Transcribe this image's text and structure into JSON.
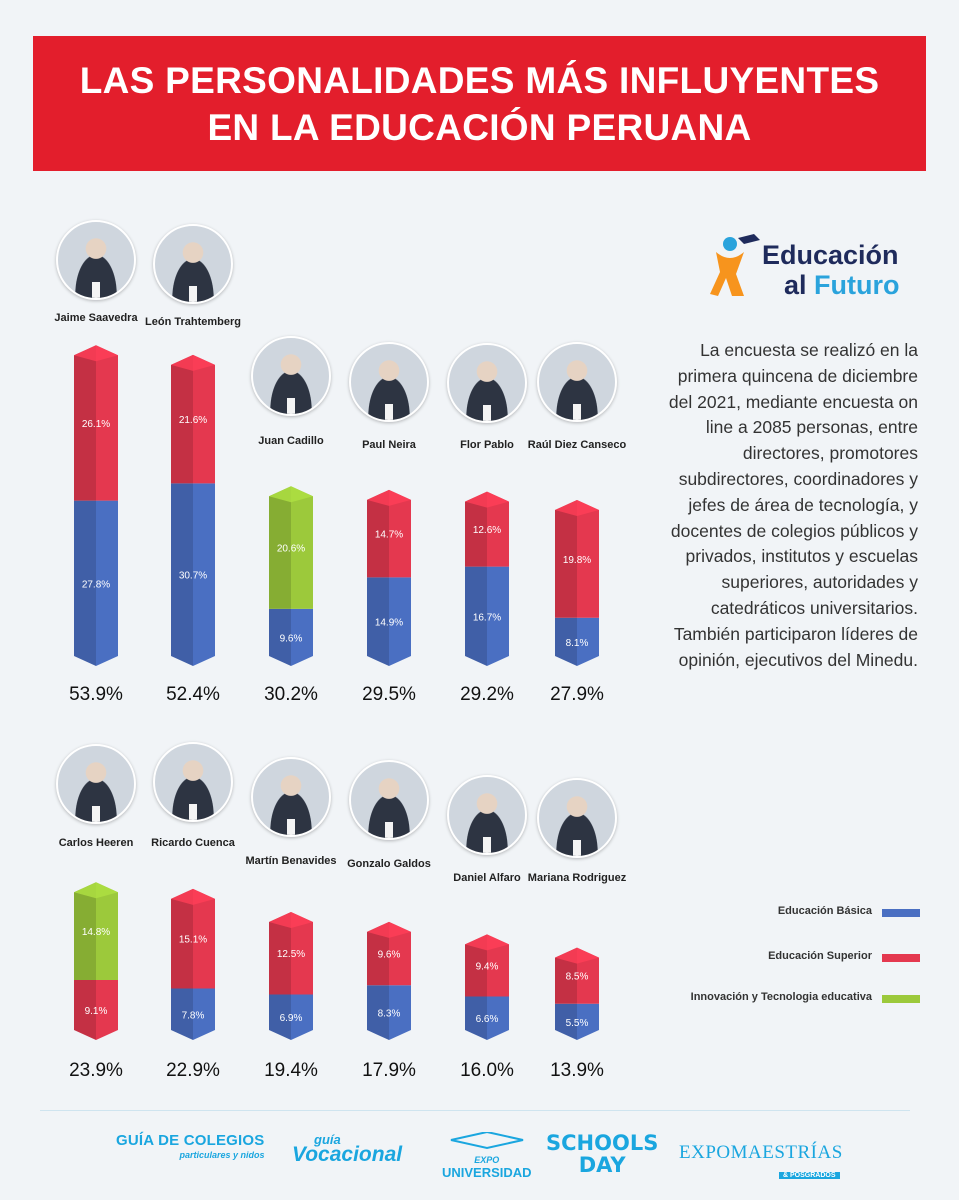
{
  "title": {
    "line1": "LAS PERSONALIDADES MÁS INFLUYENTES",
    "line2": "EN LA EDUCACIÓN PERUANA"
  },
  "logo": {
    "line1": "Educación",
    "line2_a": "al ",
    "line2_b": "Futuro"
  },
  "description": "La encuesta se realizó en la primera quincena de diciembre del 2021, mediante encuesta on line a 2085 personas, entre directores, promotores subdirectores, coordinadores y jefes de área de tecnología, y docentes de colegios públicos y privados, institutos y escuelas superiores, autoridades y catedráticos universitarios. También participaron líderes de opinión, ejecutivos del Minedu.",
  "legend": {
    "basica": "Educación Básica",
    "superior": "Educación Superior",
    "innovacion": "Innovación y Tecnologia educativa"
  },
  "colors": {
    "basica": "#4a6fc2",
    "superior": "#e4384f",
    "innovacion": "#9cc93b",
    "title_bg": "#e31e2c",
    "footer": "#1aa6df"
  },
  "chart_data": {
    "type": "bar",
    "stacked": true,
    "series": [
      {
        "name": "Educación Básica"
      },
      {
        "name": "Educación Superior"
      },
      {
        "name": "Innovación y Tecnologia educativa"
      }
    ],
    "rows": [
      [
        {
          "name": "Jaime Saavedra",
          "basica": 27.8,
          "superior": 26.1,
          "innovacion": 0,
          "total": "53.9%"
        },
        {
          "name": "León Trahtemberg",
          "basica": 30.7,
          "superior": 21.6,
          "innovacion": 0,
          "total": "52.4%"
        },
        {
          "name": "Juan Cadillo",
          "basica": 9.6,
          "superior": 0,
          "innovacion": 20.6,
          "total": "30.2%"
        },
        {
          "name": "Paul Neira",
          "basica": 14.9,
          "superior": 14.7,
          "innovacion": 0,
          "total": "29.5%"
        },
        {
          "name": "Flor Pablo",
          "basica": 16.7,
          "superior": 12.6,
          "innovacion": 0,
          "total": "29.2%"
        },
        {
          "name": "Raúl Diez Canseco",
          "basica": 8.1,
          "superior": 19.8,
          "innovacion": 0,
          "total": "27.9%"
        }
      ],
      [
        {
          "name": "Carlos Heeren",
          "basica": 0,
          "superior": 9.1,
          "innovacion": 14.8,
          "total": "23.9%"
        },
        {
          "name": "Ricardo Cuenca",
          "basica": 7.8,
          "superior": 15.1,
          "innovacion": 0,
          "total": "22.9%"
        },
        {
          "name": "Martín Benavides",
          "basica": 6.9,
          "superior": 12.5,
          "innovacion": 0,
          "total": "19.4%"
        },
        {
          "name": "Gonzalo Galdos",
          "basica": 8.3,
          "superior": 9.6,
          "innovacion": 0,
          "total": "17.9%"
        },
        {
          "name": "Daniel Alfaro",
          "basica": 6.6,
          "superior": 9.4,
          "innovacion": 0,
          "total": "16.0%"
        },
        {
          "name": "Mariana Rodriguez",
          "basica": 5.5,
          "superior": 8.5,
          "innovacion": 0,
          "total": "13.9%"
        }
      ]
    ]
  },
  "footer": {
    "guia": "GUÍA DE COLEGIOS",
    "guia_sub": "particulares y nidos",
    "voc_a": "guía",
    "voc_b": "Vocacional",
    "expo_a": "EXPO",
    "expo_b": "UNIVERSIDAD",
    "schools_a": "SCHOOLS",
    "schools_b": "DAY",
    "maestrias": "EXPOMAESTRÍAS",
    "maestrias_sub": "& POSGRADOS"
  }
}
